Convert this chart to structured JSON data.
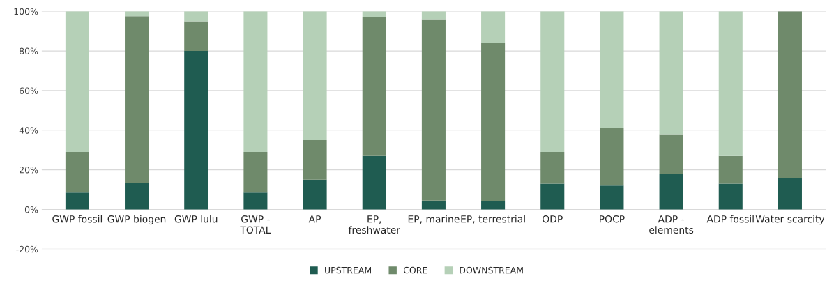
{
  "chart_data": {
    "type": "bar",
    "stacked": true,
    "categories": [
      "GWP fossil",
      "GWP biogen",
      "GWP lulu",
      "GWP -\nTOTAL",
      "AP",
      "EP,\nfreshwater",
      "EP, marine",
      "EP, terrestrial",
      "ODP",
      "POCP",
      "ADP -\nelements",
      "ADP fossil",
      "Water scarcity"
    ],
    "series": [
      {
        "name": "UPSTREAM",
        "color": "#1f5c51",
        "values": [
          8.5,
          13.5,
          80,
          8.5,
          15,
          27,
          4.5,
          4,
          13,
          12,
          18,
          13,
          16
        ]
      },
      {
        "name": "CORE",
        "color": "#6f8a6b",
        "values": [
          20.5,
          84,
          15,
          20.5,
          20,
          70,
          91.5,
          80,
          16,
          29,
          20,
          14,
          84
        ]
      },
      {
        "name": "DOWNSTREAM",
        "color": "#b5d0b7",
        "values": [
          71,
          2.5,
          5,
          71,
          65,
          3,
          4,
          16,
          71,
          59,
          62,
          73,
          null
        ]
      }
    ],
    "ylim": [
      -20,
      100
    ],
    "yticks": [
      {
        "value": -20,
        "label": "-20%"
      },
      {
        "value": 0,
        "label": "0%"
      },
      {
        "value": 20,
        "label": "20%"
      },
      {
        "value": 40,
        "label": "40%"
      },
      {
        "value": 60,
        "label": "60%"
      },
      {
        "value": 80,
        "label": "80%"
      },
      {
        "value": 100,
        "label": "100%"
      }
    ],
    "grid": "y",
    "legend": "bottom"
  }
}
